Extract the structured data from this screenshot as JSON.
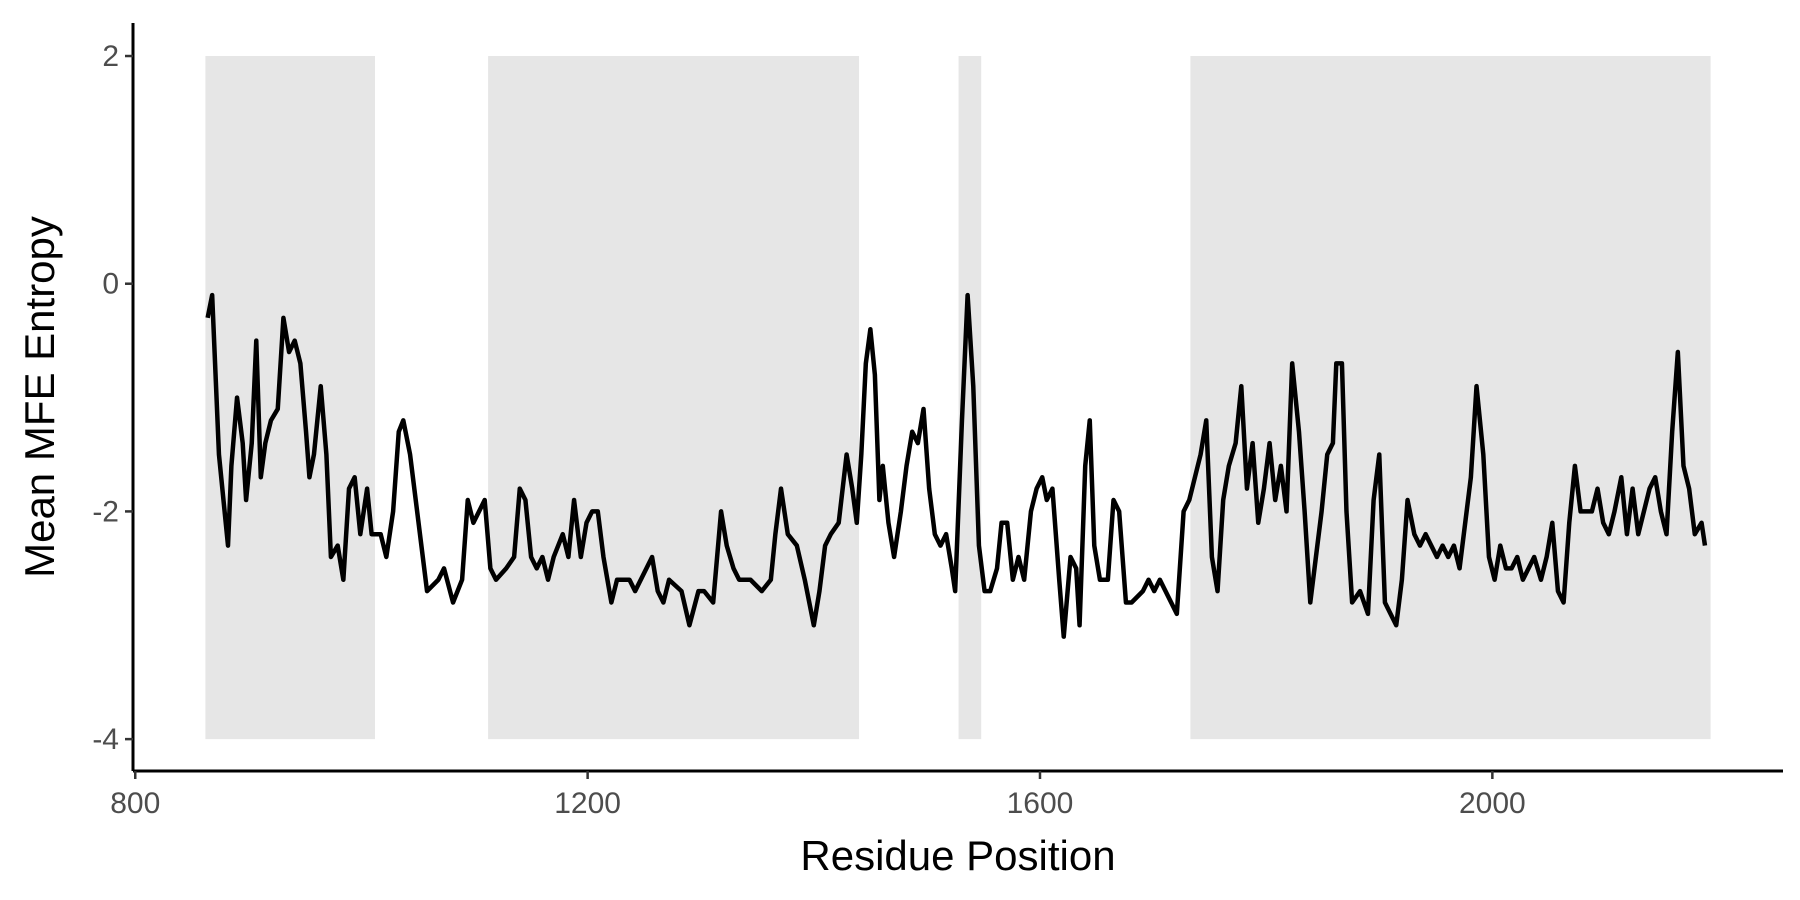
{
  "chart_data": {
    "type": "line",
    "xlabel": "Residue Position",
    "ylabel": "Mean MFE Entropy",
    "xlim": [
      798,
      2257
    ],
    "ylim": [
      -4.28,
      2.29
    ],
    "xticks": [
      800,
      1200,
      1600,
      2000
    ],
    "yticks": [
      -4,
      -2,
      0,
      2
    ],
    "grid": false,
    "color": "#000000",
    "shaded_regions": [
      [
        862,
        1012
      ],
      [
        1112,
        1440
      ],
      [
        1528,
        1548
      ],
      [
        1733,
        2193
      ]
    ],
    "shaded_ylim": [
      -4,
      2
    ],
    "shade_color": "#e6e6e6",
    "x": [
      864,
      868,
      874,
      880,
      882,
      885,
      890,
      895,
      898,
      903,
      907,
      911,
      915,
      920,
      926,
      931,
      936,
      941,
      946,
      951,
      954,
      958,
      964,
      969,
      973,
      979,
      984,
      989,
      994,
      999,
      1005,
      1009,
      1017,
      1022,
      1028,
      1033,
      1037,
      1043,
      1048,
      1053,
      1058,
      1068,
      1073,
      1081,
      1089,
      1094,
      1099,
      1104,
      1109,
      1114,
      1119,
      1128,
      1135,
      1140,
      1145,
      1150,
      1155,
      1160,
      1165,
      1170,
      1178,
      1183,
      1188,
      1194,
      1199,
      1204,
      1209,
      1214,
      1221,
      1226,
      1237,
      1242,
      1252,
      1257,
      1262,
      1267,
      1272,
      1283,
      1290,
      1298,
      1303,
      1311,
      1318,
      1323,
      1329,
      1334,
      1344,
      1354,
      1362,
      1366,
      1371,
      1377,
      1385,
      1392,
      1400,
      1405,
      1410,
      1415,
      1422,
      1429,
      1434,
      1438,
      1442,
      1446,
      1450,
      1454,
      1458,
      1461,
      1466,
      1471,
      1477,
      1482,
      1487,
      1492,
      1497,
      1502,
      1507,
      1512,
      1517,
      1522,
      1525,
      1531,
      1536,
      1541,
      1546,
      1551,
      1556,
      1562,
      1566,
      1571,
      1576,
      1581,
      1586,
      1592,
      1597,
      1602,
      1606,
      1611,
      1617,
      1621,
      1627,
      1632,
      1635,
      1640,
      1644,
      1648,
      1653,
      1660,
      1665,
      1670,
      1676,
      1681,
      1691,
      1696,
      1701,
      1706,
      1711,
      1716,
      1721,
      1727,
      1732,
      1737,
      1742,
      1747,
      1752,
      1757,
      1762,
      1767,
      1773,
      1778,
      1783,
      1788,
      1793,
      1798,
      1803,
      1808,
      1813,
      1818,
      1823,
      1829,
      1834,
      1839,
      1844,
      1849,
      1854,
      1859,
      1862,
      1867,
      1871,
      1876,
      1883,
      1890,
      1895,
      1900,
      1905,
      1910,
      1915,
      1920,
      1925,
      1931,
      1936,
      1941,
      1946,
      1951,
      1956,
      1961,
      1966,
      1971,
      1976,
      1981,
      1986,
      1992,
      1997,
      2002,
      2007,
      2012,
      2017,
      2022,
      2027,
      2032,
      2037,
      2043,
      2048,
      2053,
      2058,
      2063,
      2068,
      2073,
      2078,
      2083,
      2088,
      2093,
      2098,
      2103,
      2108,
      2114,
      2119,
      2124,
      2129,
      2134,
      2139,
      2144,
      2149,
      2154,
      2159,
      2164,
      2169,
      2174,
      2179,
      2185,
      2188
    ],
    "values": [
      -0.3,
      -0.1,
      -1.5,
      -2.1,
      -2.3,
      -1.6,
      -1.0,
      -1.4,
      -1.9,
      -1.4,
      -0.5,
      -1.7,
      -1.4,
      -1.2,
      -1.1,
      -0.3,
      -0.6,
      -0.5,
      -0.7,
      -1.3,
      -1.7,
      -1.5,
      -0.9,
      -1.5,
      -2.4,
      -2.3,
      -2.6,
      -1.8,
      -1.7,
      -2.2,
      -1.8,
      -2.2,
      -2.2,
      -2.4,
      -2.0,
      -1.3,
      -1.2,
      -1.5,
      -1.9,
      -2.3,
      -2.7,
      -2.6,
      -2.5,
      -2.8,
      -2.6,
      -1.9,
      -2.1,
      -2.0,
      -1.9,
      -2.5,
      -2.6,
      -2.5,
      -2.4,
      -1.8,
      -1.9,
      -2.4,
      -2.5,
      -2.4,
      -2.6,
      -2.4,
      -2.2,
      -2.4,
      -1.9,
      -2.4,
      -2.1,
      -2.0,
      -2.0,
      -2.4,
      -2.8,
      -2.6,
      -2.6,
      -2.7,
      -2.5,
      -2.4,
      -2.7,
      -2.8,
      -2.6,
      -2.7,
      -3.0,
      -2.7,
      -2.7,
      -2.8,
      -2.0,
      -2.3,
      -2.5,
      -2.6,
      -2.6,
      -2.7,
      -2.6,
      -2.2,
      -1.8,
      -2.2,
      -2.3,
      -2.6,
      -3.0,
      -2.7,
      -2.3,
      -2.2,
      -2.1,
      -1.5,
      -1.8,
      -2.1,
      -1.5,
      -0.7,
      -0.4,
      -0.8,
      -1.9,
      -1.6,
      -2.1,
      -2.4,
      -2.0,
      -1.6,
      -1.3,
      -1.4,
      -1.1,
      -1.8,
      -2.2,
      -2.3,
      -2.2,
      -2.5,
      -2.7,
      -1.2,
      -0.1,
      -0.9,
      -2.3,
      -2.7,
      -2.7,
      -2.5,
      -2.1,
      -2.1,
      -2.6,
      -2.4,
      -2.6,
      -2.0,
      -1.8,
      -1.7,
      -1.9,
      -1.8,
      -2.6,
      -3.1,
      -2.4,
      -2.5,
      -3.0,
      -1.6,
      -1.2,
      -2.3,
      -2.6,
      -2.6,
      -1.9,
      -2.0,
      -2.8,
      -2.8,
      -2.7,
      -2.6,
      -2.7,
      -2.6,
      -2.7,
      -2.8,
      -2.9,
      -2.0,
      -1.9,
      -1.7,
      -1.5,
      -1.2,
      -2.4,
      -2.7,
      -1.9,
      -1.6,
      -1.4,
      -0.9,
      -1.8,
      -1.4,
      -2.1,
      -1.8,
      -1.4,
      -1.9,
      -1.6,
      -2.0,
      -0.7,
      -1.3,
      -2.0,
      -2.8,
      -2.4,
      -2.0,
      -1.5,
      -1.4,
      -0.7,
      -0.7,
      -2.0,
      -2.8,
      -2.7,
      -2.9,
      -1.9,
      -1.5,
      -2.8,
      -2.9,
      -3.0,
      -2.6,
      -1.9,
      -2.2,
      -2.3,
      -2.2,
      -2.3,
      -2.4,
      -2.3,
      -2.4,
      -2.3,
      -2.5,
      -2.1,
      -1.7,
      -0.9,
      -1.5,
      -2.4,
      -2.6,
      -2.3,
      -2.5,
      -2.5,
      -2.4,
      -2.6,
      -2.5,
      -2.4,
      -2.6,
      -2.4,
      -2.1,
      -2.7,
      -2.8,
      -2.1,
      -1.6,
      -2.0,
      -2.0,
      -2.0,
      -1.8,
      -2.1,
      -2.2,
      -2.0,
      -1.7,
      -2.2,
      -1.8,
      -2.2,
      -2.0,
      -1.8,
      -1.7,
      -2.0,
      -2.2,
      -1.3,
      -0.6,
      -1.6,
      -1.8,
      -2.2,
      -2.1,
      -2.3
    ]
  }
}
